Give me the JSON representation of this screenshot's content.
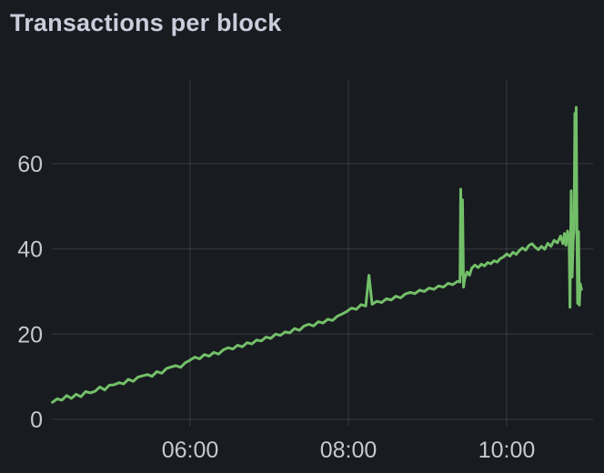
{
  "panel": {
    "title": "Transactions per block"
  },
  "colors": {
    "background": "#181b1f",
    "title_text": "#ccccdc",
    "axis_text": "#c7c7d1",
    "gridline": "rgba(204,204,220,0.12)",
    "series_green": "#73bf69"
  },
  "chart_data": {
    "type": "line",
    "title": "Transactions per block",
    "xlabel": "",
    "ylabel": "",
    "legend": "none",
    "grid": true,
    "x_unit": "time of day (hours, decimal)",
    "x_range": [
      4.253,
      11.092
    ],
    "y_range": [
      0,
      79.6
    ],
    "x_ticks": [
      {
        "t": 6,
        "label": "06:00"
      },
      {
        "t": 8,
        "label": "08:00"
      },
      {
        "t": 10,
        "label": "10:00"
      }
    ],
    "y_ticks": [
      {
        "v": 0,
        "label": "0"
      },
      {
        "v": 20,
        "label": "20"
      },
      {
        "v": 40,
        "label": "40"
      },
      {
        "v": 60,
        "label": "60"
      }
    ],
    "series": [
      {
        "name": "Transactions per block",
        "color": "#73bf69",
        "points": [
          [
            4.26,
            4.0
          ],
          [
            4.32,
            4.8
          ],
          [
            4.38,
            4.5
          ],
          [
            4.44,
            5.6
          ],
          [
            4.5,
            4.9
          ],
          [
            4.56,
            5.9
          ],
          [
            4.62,
            5.3
          ],
          [
            4.68,
            6.5
          ],
          [
            4.74,
            6.2
          ],
          [
            4.8,
            6.6
          ],
          [
            4.86,
            7.6
          ],
          [
            4.92,
            6.9
          ],
          [
            4.98,
            8.0
          ],
          [
            5.04,
            8.1
          ],
          [
            5.1,
            8.6
          ],
          [
            5.16,
            8.3
          ],
          [
            5.22,
            9.4
          ],
          [
            5.28,
            8.9
          ],
          [
            5.34,
            9.9
          ],
          [
            5.4,
            10.2
          ],
          [
            5.46,
            10.5
          ],
          [
            5.52,
            10.1
          ],
          [
            5.58,
            11.2
          ],
          [
            5.64,
            10.8
          ],
          [
            5.7,
            11.9
          ],
          [
            5.76,
            12.3
          ],
          [
            5.82,
            12.6
          ],
          [
            5.88,
            12.2
          ],
          [
            5.94,
            13.3
          ],
          [
            6.0,
            13.9
          ],
          [
            6.06,
            14.6
          ],
          [
            6.12,
            14.2
          ],
          [
            6.18,
            15.2
          ],
          [
            6.24,
            14.8
          ],
          [
            6.3,
            15.7
          ],
          [
            6.36,
            15.3
          ],
          [
            6.42,
            16.3
          ],
          [
            6.48,
            16.8
          ],
          [
            6.54,
            16.5
          ],
          [
            6.6,
            17.4
          ],
          [
            6.66,
            17.0
          ],
          [
            6.72,
            18.0
          ],
          [
            6.78,
            17.7
          ],
          [
            6.84,
            18.6
          ],
          [
            6.9,
            18.4
          ],
          [
            6.96,
            19.3
          ],
          [
            7.02,
            19.0
          ],
          [
            7.08,
            20.0
          ],
          [
            7.14,
            19.7
          ],
          [
            7.2,
            20.5
          ],
          [
            7.26,
            20.3
          ],
          [
            7.32,
            21.3
          ],
          [
            7.38,
            20.9
          ],
          [
            7.44,
            21.9
          ],
          [
            7.5,
            22.3
          ],
          [
            7.56,
            21.9
          ],
          [
            7.62,
            22.9
          ],
          [
            7.68,
            22.6
          ],
          [
            7.74,
            23.5
          ],
          [
            7.8,
            23.2
          ],
          [
            7.86,
            24.2
          ],
          [
            7.92,
            24.7
          ],
          [
            7.98,
            25.3
          ],
          [
            8.04,
            26.1
          ],
          [
            8.1,
            25.8
          ],
          [
            8.16,
            26.9
          ],
          [
            8.22,
            26.6
          ],
          [
            8.26,
            33.8
          ],
          [
            8.3,
            27.0
          ],
          [
            8.36,
            27.7
          ],
          [
            8.42,
            27.4
          ],
          [
            8.48,
            28.3
          ],
          [
            8.54,
            28.0
          ],
          [
            8.6,
            28.9
          ],
          [
            8.66,
            28.5
          ],
          [
            8.72,
            29.4
          ],
          [
            8.78,
            29.8
          ],
          [
            8.84,
            29.5
          ],
          [
            8.9,
            30.3
          ],
          [
            8.96,
            30.0
          ],
          [
            9.02,
            30.8
          ],
          [
            9.08,
            30.5
          ],
          [
            9.14,
            31.3
          ],
          [
            9.2,
            31.0
          ],
          [
            9.26,
            31.9
          ],
          [
            9.32,
            31.6
          ],
          [
            9.38,
            32.4
          ],
          [
            9.41,
            32.2
          ],
          [
            9.42,
            54.0
          ],
          [
            9.432,
            34.0
          ],
          [
            9.442,
            51.5
          ],
          [
            9.455,
            31.0
          ],
          [
            9.47,
            33.0
          ],
          [
            9.5,
            34.6
          ],
          [
            9.53,
            33.8
          ],
          [
            9.56,
            35.5
          ],
          [
            9.6,
            36.2
          ],
          [
            9.64,
            35.6
          ],
          [
            9.68,
            36.4
          ],
          [
            9.72,
            36.0
          ],
          [
            9.76,
            36.8
          ],
          [
            9.8,
            36.5
          ],
          [
            9.84,
            37.2
          ],
          [
            9.88,
            36.9
          ],
          [
            9.92,
            37.7
          ],
          [
            9.96,
            38.1
          ],
          [
            10.0,
            38.8
          ],
          [
            10.04,
            38.3
          ],
          [
            10.08,
            39.2
          ],
          [
            10.12,
            38.7
          ],
          [
            10.16,
            39.6
          ],
          [
            10.2,
            40.2
          ],
          [
            10.24,
            39.7
          ],
          [
            10.28,
            40.8
          ],
          [
            10.32,
            41.2
          ],
          [
            10.36,
            40.4
          ],
          [
            10.4,
            39.8
          ],
          [
            10.44,
            40.6
          ],
          [
            10.48,
            39.9
          ],
          [
            10.52,
            41.3
          ],
          [
            10.56,
            40.6
          ],
          [
            10.6,
            42.0
          ],
          [
            10.64,
            41.4
          ],
          [
            10.68,
            43.0
          ],
          [
            10.71,
            41.2
          ],
          [
            10.73,
            43.6
          ],
          [
            10.75,
            40.8
          ],
          [
            10.77,
            44.2
          ],
          [
            10.79,
            41.5
          ],
          [
            10.8,
            26.3
          ],
          [
            10.815,
            53.6
          ],
          [
            10.828,
            33.4
          ],
          [
            10.84,
            41.8
          ],
          [
            10.852,
            44.5
          ],
          [
            10.862,
            71.8
          ],
          [
            10.87,
            58.2
          ],
          [
            10.878,
            73.2
          ],
          [
            10.888,
            43.5
          ],
          [
            10.897,
            27.2
          ],
          [
            10.908,
            44.0
          ],
          [
            10.918,
            26.8
          ],
          [
            10.93,
            31.8
          ],
          [
            10.945,
            30.5
          ]
        ]
      }
    ]
  }
}
